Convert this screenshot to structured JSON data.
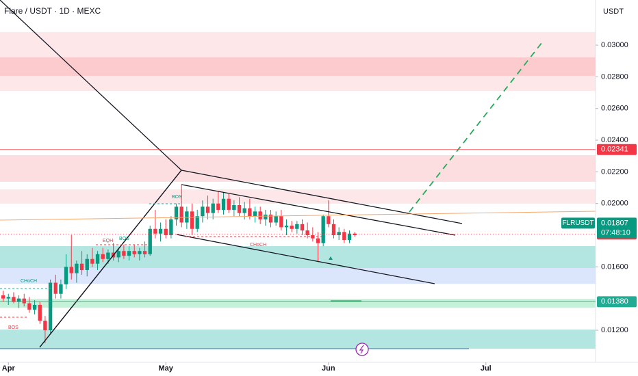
{
  "chart_data": {
    "type": "candlestick",
    "title": "Flare / USDT · 1D · MEXC",
    "y_axis_label": "USDT",
    "up_color": "#089981",
    "down_color": "#f23645",
    "xlim": [
      -1.6,
      111.9
    ],
    "xticks": [
      {
        "value": 0,
        "label": "Apr"
      },
      {
        "value": 30,
        "label": "May"
      },
      {
        "value": 61,
        "label": "Jun"
      },
      {
        "value": 91,
        "label": "Jul"
      }
    ],
    "ylim": [
      0.01062,
      0.03285
    ],
    "yticks": [
      {
        "value": 0.012,
        "label": "0.01200"
      },
      {
        "value": 0.016,
        "label": "0.01600"
      },
      {
        "value": 0.02,
        "label": "0.02000"
      },
      {
        "value": 0.022,
        "label": "0.02200"
      },
      {
        "value": 0.024,
        "label": "0.02400"
      },
      {
        "value": 0.026,
        "label": "0.02600"
      },
      {
        "value": 0.028,
        "label": "0.02800"
      },
      {
        "value": 0.03,
        "label": "0.03000"
      }
    ],
    "x": [
      -1,
      0,
      1,
      2,
      3,
      4,
      5,
      6,
      7,
      8,
      9,
      10,
      11,
      12,
      13,
      14,
      15,
      16,
      17,
      18,
      19,
      20,
      21,
      22,
      23,
      24,
      25,
      26,
      27,
      28,
      29,
      30,
      31,
      32,
      33,
      34,
      35,
      36,
      37,
      38,
      39,
      40,
      41,
      42,
      43,
      44,
      45,
      46,
      47,
      48,
      49,
      50,
      51,
      52,
      53,
      54,
      55,
      56,
      57,
      58,
      59,
      60,
      61,
      62,
      63,
      64,
      65,
      66
    ],
    "open": [
      0.0142,
      0.014,
      0.0141,
      0.0138,
      0.014,
      0.0137,
      0.0133,
      0.0136,
      0.0126,
      0.012,
      0.015,
      0.0143,
      0.0149,
      0.016,
      0.0156,
      0.0162,
      0.0158,
      0.0165,
      0.0162,
      0.0168,
      0.0165,
      0.0169,
      0.0166,
      0.017,
      0.0167,
      0.017,
      0.0168,
      0.017,
      0.0168,
      0.0184,
      0.0181,
      0.0184,
      0.018,
      0.019,
      0.0198,
      0.0188,
      0.0195,
      0.0184,
      0.0192,
      0.0198,
      0.0194,
      0.02,
      0.0196,
      0.0203,
      0.0196,
      0.0199,
      0.0194,
      0.0197,
      0.0192,
      0.0195,
      0.019,
      0.0193,
      0.0188,
      0.0192,
      0.0185,
      0.0186,
      0.0184,
      0.0187,
      0.0183,
      0.018,
      0.0178,
      0.0175,
      0.0192,
      0.0187,
      0.018,
      0.0182,
      0.0177,
      0.0181
    ],
    "high": [
      0.0145,
      0.0143,
      0.0144,
      0.0142,
      0.0143,
      0.0141,
      0.0139,
      0.0138,
      0.0129,
      0.0152,
      0.0155,
      0.0152,
      0.0168,
      0.018,
      0.0164,
      0.017,
      0.0168,
      0.0172,
      0.017,
      0.0172,
      0.0171,
      0.0175,
      0.0172,
      0.0174,
      0.0173,
      0.0174,
      0.0172,
      0.0176,
      0.0186,
      0.0196,
      0.0188,
      0.019,
      0.0192,
      0.02,
      0.0212,
      0.0198,
      0.02,
      0.0196,
      0.0202,
      0.0205,
      0.0203,
      0.0208,
      0.0207,
      0.0206,
      0.0202,
      0.0204,
      0.0201,
      0.0203,
      0.0198,
      0.0198,
      0.0196,
      0.0196,
      0.0195,
      0.0196,
      0.019,
      0.0189,
      0.0189,
      0.019,
      0.0188,
      0.0185,
      0.0182,
      0.0193,
      0.0202,
      0.019,
      0.0185,
      0.0184,
      0.0183,
      0.0182
    ],
    "low": [
      0.0138,
      0.0136,
      0.0137,
      0.0134,
      0.0135,
      0.0131,
      0.013,
      0.0124,
      0.0112,
      0.0118,
      0.014,
      0.014,
      0.0146,
      0.0152,
      0.015,
      0.0155,
      0.0154,
      0.016,
      0.0158,
      0.0163,
      0.0162,
      0.0164,
      0.0163,
      0.0165,
      0.0164,
      0.0166,
      0.0164,
      0.0166,
      0.0167,
      0.0178,
      0.0176,
      0.0178,
      0.0178,
      0.0186,
      0.0185,
      0.0184,
      0.018,
      0.0182,
      0.0188,
      0.019,
      0.019,
      0.0194,
      0.0193,
      0.0194,
      0.0192,
      0.0192,
      0.019,
      0.019,
      0.0188,
      0.0187,
      0.0186,
      0.0185,
      0.0186,
      0.0183,
      0.018,
      0.0182,
      0.0181,
      0.018,
      0.0178,
      0.0176,
      0.0163,
      0.0173,
      0.0185,
      0.0178,
      0.0177,
      0.0175,
      0.0175,
      0.0179
    ],
    "close": [
      0.014,
      0.0141,
      0.0138,
      0.014,
      0.0137,
      0.0133,
      0.0136,
      0.0126,
      0.012,
      0.015,
      0.0143,
      0.0149,
      0.016,
      0.0156,
      0.0162,
      0.0158,
      0.0165,
      0.0162,
      0.0168,
      0.0165,
      0.0169,
      0.0166,
      0.017,
      0.0167,
      0.017,
      0.0168,
      0.017,
      0.0168,
      0.0184,
      0.0181,
      0.0184,
      0.018,
      0.019,
      0.0198,
      0.0188,
      0.0195,
      0.0184,
      0.0192,
      0.0198,
      0.0194,
      0.02,
      0.0196,
      0.0203,
      0.0196,
      0.0199,
      0.0194,
      0.0197,
      0.0192,
      0.0195,
      0.019,
      0.0193,
      0.0188,
      0.0192,
      0.0185,
      0.0186,
      0.0184,
      0.0187,
      0.0183,
      0.018,
      0.0178,
      0.0175,
      0.0192,
      0.0187,
      0.018,
      0.0182,
      0.0177,
      0.0181,
      0.018
    ],
    "zones": [
      {
        "from": 0.02711,
        "to": 0.03083,
        "color": "#fde3e5"
      },
      {
        "from": 0.02806,
        "to": 0.02923,
        "color": "#fbc5c9"
      },
      {
        "from": 0.02137,
        "to": 0.02305,
        "color": "#fdd8db"
      },
      {
        "from": 0.01999,
        "to": 0.0209,
        "color": "#fde3e5"
      },
      {
        "from": 0.01493,
        "to": 0.01593,
        "color": "#d5e0fb"
      },
      {
        "from": 0.01593,
        "to": 0.01731,
        "color": "#a6e0dc"
      },
      {
        "from": 0.01342,
        "to": 0.01398,
        "color": "#b9f0d2"
      },
      {
        "from": 0.01083,
        "to": 0.01204,
        "color": "#a6e0dc"
      }
    ],
    "levels": [
      {
        "value": 0.02341,
        "label": "0.02341",
        "color": "#f23645"
      },
      {
        "value": 0.01807,
        "label": "0.01807",
        "color": "#f23645"
      },
      {
        "value": 0.0138,
        "label": "0.01380",
        "color": "#22ab94"
      }
    ],
    "symbol_tag": {
      "name": "FLRUSDT",
      "price": {
        "value": 0.01807,
        "label": "0.01807"
      },
      "countdown": "07:48:10",
      "color": "#089981"
    },
    "annotations": [
      "BOS",
      "BOS",
      "EQH",
      "CHoCH",
      "CHoCH",
      "BOS"
    ]
  }
}
